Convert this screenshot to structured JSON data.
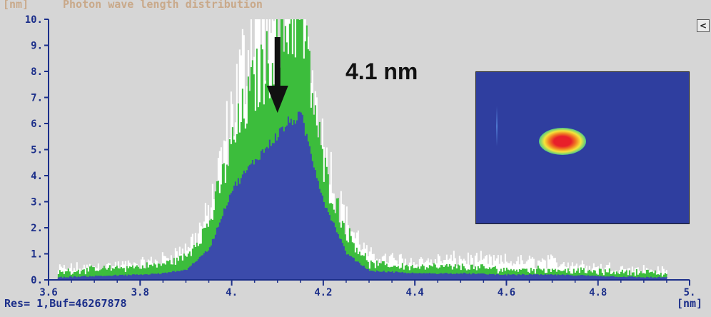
{
  "header": {
    "y_unit": "[nm]",
    "title": "Photon wave length distribution"
  },
  "footer": {
    "status": "Res= 1,Buf=46267878",
    "x_unit": "[nm]"
  },
  "controls": {
    "scroll_button": "<"
  },
  "annotation": {
    "text": "4.1 nm"
  },
  "colors": {
    "white_series": "#ffffff",
    "green_series": "#3cbd3c",
    "blue_series": "#3b4bab",
    "axis": "#1c2f8a",
    "title": "#c9a98a"
  },
  "chart_data": {
    "type": "area",
    "title": "Photon wave length distribution",
    "xlabel": "[nm]",
    "ylabel": "[nm]",
    "xlim": [
      3.6,
      5.0
    ],
    "ylim": [
      0,
      10
    ],
    "x_ticks": [
      "3.6",
      "3.8",
      "4.",
      "4.2",
      "4.4",
      "4.6",
      "4.8",
      "5."
    ],
    "x_tick_values": [
      3.6,
      3.8,
      4.0,
      4.2,
      4.4,
      4.6,
      4.8,
      5.0
    ],
    "y_ticks": [
      "0.",
      "1.",
      "2.",
      "3.",
      "4.",
      "5.",
      "6.",
      "7.",
      "8.",
      "9.",
      "10."
    ],
    "y_tick_values": [
      0,
      1,
      2,
      3,
      4,
      5,
      6,
      7,
      8,
      9,
      10
    ],
    "grid": false,
    "x": [
      3.62,
      3.7,
      3.8,
      3.85,
      3.9,
      3.95,
      4.0,
      4.05,
      4.1,
      4.12,
      4.15,
      4.2,
      4.25,
      4.3,
      4.4,
      4.5,
      4.6,
      4.7,
      4.8,
      4.9,
      4.95
    ],
    "series": [
      {
        "color": "white",
        "values": [
          0.4,
          0.5,
          0.6,
          0.8,
          1.2,
          2.5,
          6.5,
          10,
          10,
          10,
          10,
          5.0,
          2.2,
          0.9,
          0.7,
          0.8,
          0.7,
          0.7,
          0.5,
          0.4,
          0.3
        ]
      },
      {
        "color": "green",
        "values": [
          0.3,
          0.4,
          0.5,
          0.6,
          0.9,
          2.2,
          5.2,
          7.6,
          8.8,
          9.8,
          10,
          4.2,
          1.8,
          0.6,
          0.5,
          0.5,
          0.4,
          0.4,
          0.3,
          0.3,
          0.2
        ]
      },
      {
        "color": "blue",
        "values": [
          0.1,
          0.15,
          0.2,
          0.25,
          0.4,
          1.2,
          3.5,
          4.6,
          5.6,
          6.0,
          6.3,
          3.0,
          1.0,
          0.35,
          0.25,
          0.25,
          0.2,
          0.2,
          0.15,
          0.1,
          0.1
        ]
      }
    ],
    "annotations": [
      "4.1 nm"
    ]
  }
}
